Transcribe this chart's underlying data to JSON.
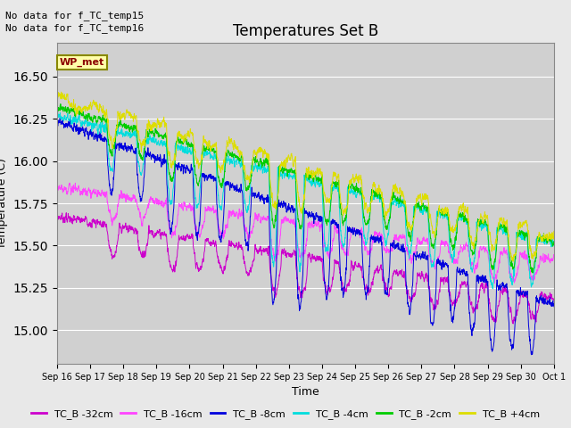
{
  "title": "Temperatures Set B",
  "xlabel": "Time",
  "ylabel": "Temperature (C)",
  "ylim": [
    14.8,
    16.7
  ],
  "background_color": "#e8e8e8",
  "plot_bg_color": "#d0d0d0",
  "annotations": [
    "No data for f_TC_temp15",
    "No data for f_TC_temp16"
  ],
  "wp_met_label": "WP_met",
  "legend_entries": [
    "TC_B -32cm",
    "TC_B -16cm",
    "TC_B -8cm",
    "TC_B -4cm",
    "TC_B -2cm",
    "TC_B +4cm"
  ],
  "line_colors": [
    "#cc00cc",
    "#ff44ff",
    "#0000dd",
    "#00dddd",
    "#00cc00",
    "#dddd00"
  ],
  "tick_labels": [
    "Sep 16",
    "Sep 17",
    "Sep 18",
    "Sep 19",
    "Sep 20",
    "Sep 21",
    "Sep 22",
    "Sep 23",
    "Sep 24",
    "Sep 25",
    "Sep 26",
    "Sep 27",
    "Sep 28",
    "Sep 29",
    "Sep 30",
    "Oct 1"
  ],
  "n_points": 2160,
  "seed": 7
}
